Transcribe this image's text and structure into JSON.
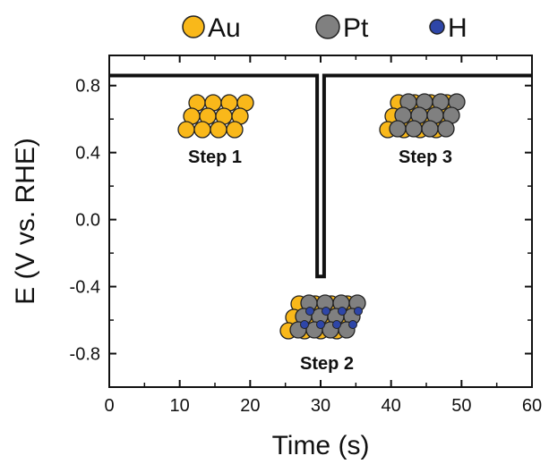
{
  "chart_data": {
    "type": "line",
    "title": "",
    "xlabel": "Time (s)",
    "ylabel": "E (V vs. RHE)",
    "xlim": [
      0,
      60
    ],
    "ylim": [
      -1.0,
      0.98
    ],
    "xticks": [
      0,
      10,
      20,
      30,
      40,
      50,
      60
    ],
    "xtick_labels": [
      "0",
      "10",
      "20",
      "30",
      "40",
      "50",
      "60"
    ],
    "yticks": [
      0.8,
      0.4,
      0.0,
      -0.4,
      -0.8
    ],
    "ytick_labels": [
      "0.8",
      "0.4",
      "0.0",
      "-0.4",
      "-0.8"
    ],
    "grid": false,
    "legend_position": "top",
    "series": [
      {
        "x": [
          0,
          29.5,
          29.5,
          30.5,
          30.5,
          60
        ],
        "y": [
          0.86,
          0.86,
          -0.34,
          -0.34,
          0.86,
          0.86
        ]
      }
    ],
    "legend": [
      {
        "label": "Au",
        "color": "#F9B81A"
      },
      {
        "label": "Pt",
        "color": "#808080"
      },
      {
        "label": "H",
        "color": "#2E46A8"
      }
    ],
    "annotations": [
      {
        "label": "Step 1",
        "x": 15.0,
        "y": 0.33,
        "composition": "Au monolayer"
      },
      {
        "label": "Step 3",
        "x": 46.0,
        "y": 0.33,
        "composition": "Pt on Au"
      },
      {
        "label": "Step 2",
        "x": 30.5,
        "y": -0.78,
        "composition": "Pt on Au with adsorbed H"
      }
    ]
  },
  "colors": {
    "line": "#111111",
    "au": "#F9B81A",
    "pt": "#808080",
    "h": "#2E46A8",
    "outline": "#222222"
  }
}
